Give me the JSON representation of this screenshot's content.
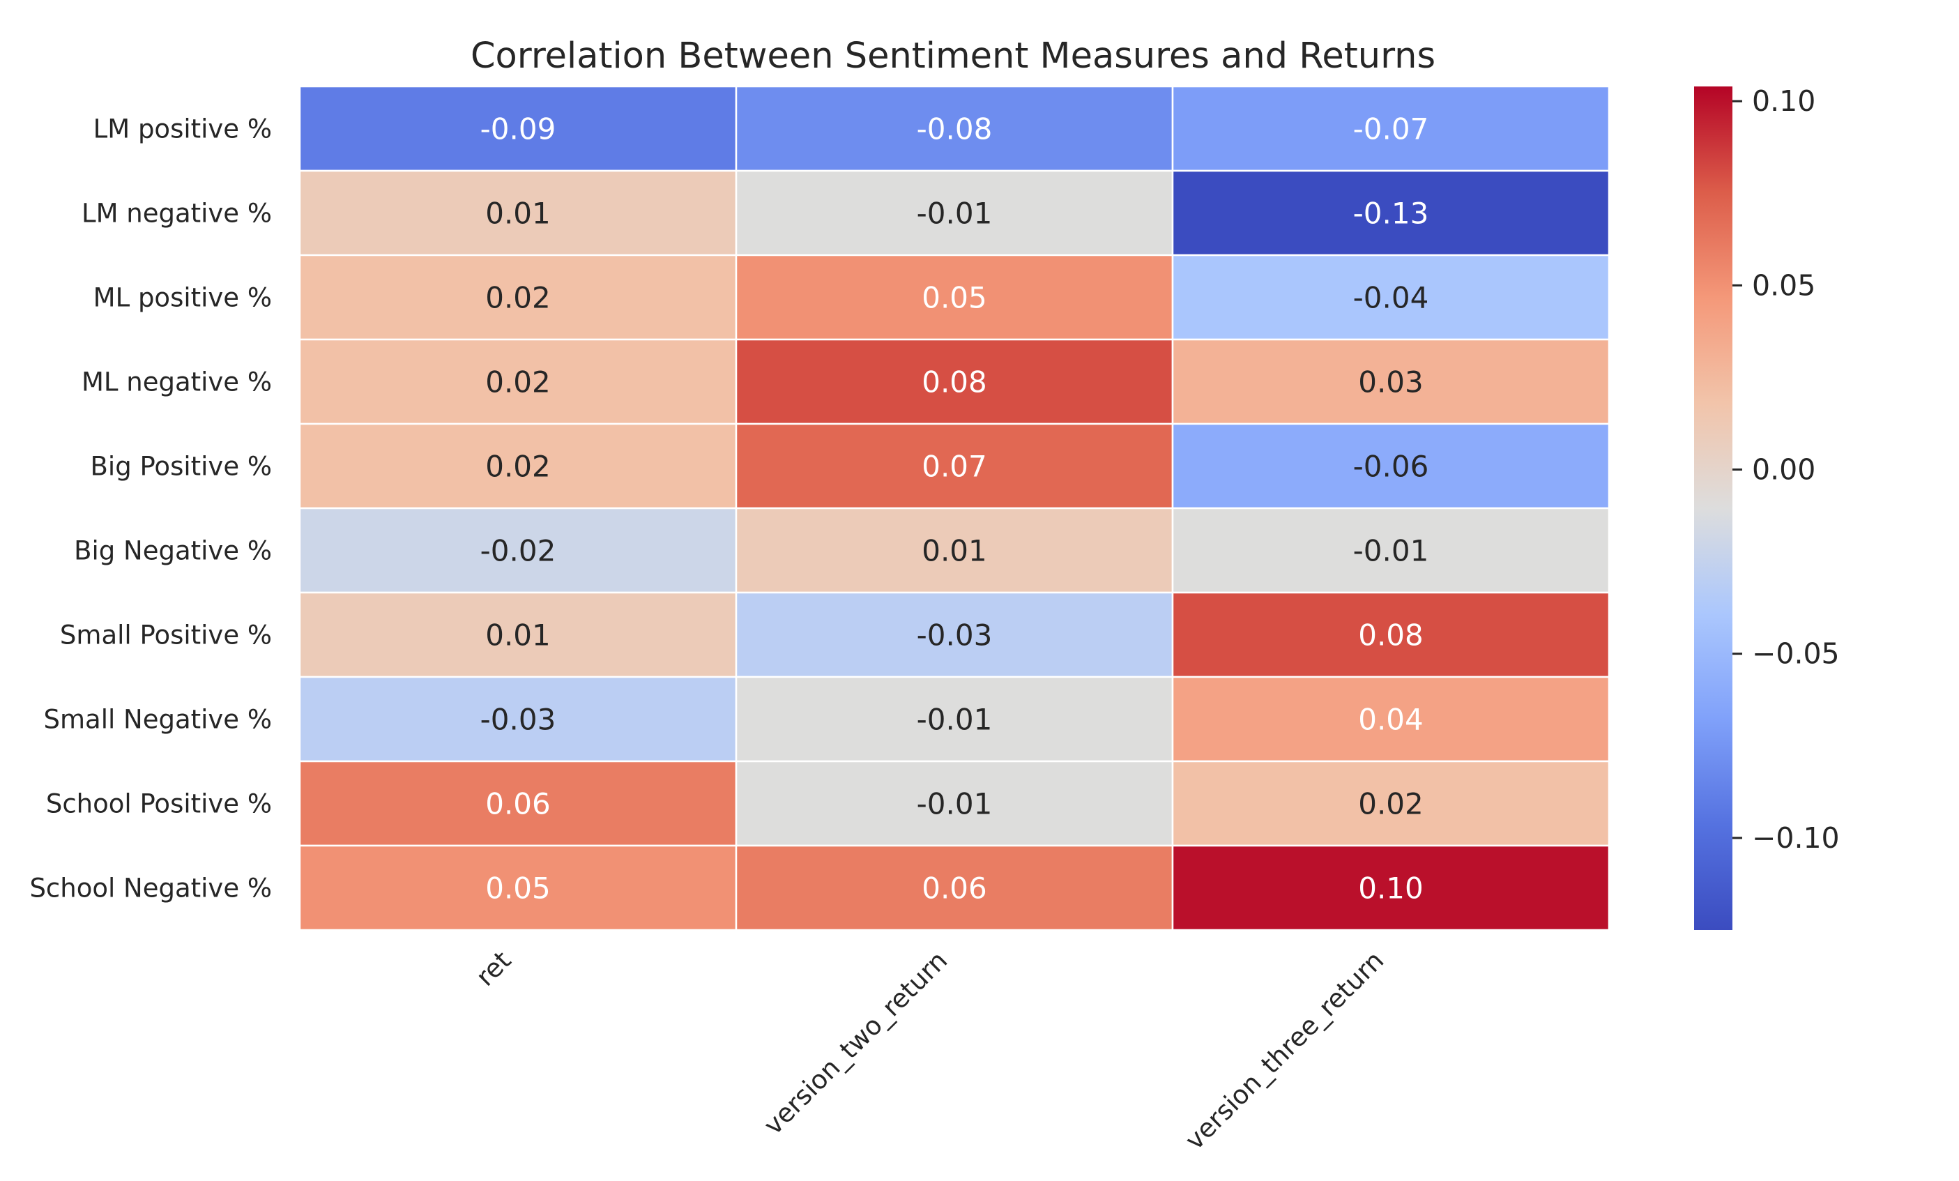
{
  "chart_data": {
    "type": "heatmap",
    "title": "Correlation Between Sentiment Measures and Returns",
    "rows": [
      "LM positive %",
      "LM negative %",
      "ML positive %",
      "ML negative %",
      "Big Positive %",
      "Big Negative %",
      "Small Positive %",
      "Small Negative %",
      "School Positive %",
      "School Negative %"
    ],
    "columns": [
      "ret",
      "version_two_return",
      "version_three_return"
    ],
    "values": [
      [
        -0.09,
        -0.08,
        -0.07
      ],
      [
        0.01,
        -0.01,
        -0.13
      ],
      [
        0.02,
        0.05,
        -0.04
      ],
      [
        0.02,
        0.08,
        0.03
      ],
      [
        0.02,
        0.07,
        -0.06
      ],
      [
        -0.02,
        0.01,
        -0.01
      ],
      [
        0.01,
        -0.03,
        0.08
      ],
      [
        -0.03,
        -0.01,
        0.04
      ],
      [
        0.06,
        -0.01,
        0.02
      ],
      [
        0.05,
        0.06,
        0.1
      ]
    ],
    "display_values": [
      [
        "-0.09",
        "-0.08",
        "-0.07"
      ],
      [
        "0.01",
        "-0.01",
        "-0.13"
      ],
      [
        "0.02",
        "0.05",
        "-0.04"
      ],
      [
        "0.02",
        "0.08",
        "0.03"
      ],
      [
        "0.02",
        "0.07",
        "-0.06"
      ],
      [
        "-0.02",
        "0.01",
        "-0.01"
      ],
      [
        "0.01",
        "-0.03",
        "0.08"
      ],
      [
        "-0.03",
        "-0.01",
        "0.04"
      ],
      [
        "0.06",
        "-0.01",
        "0.02"
      ],
      [
        "0.05",
        "0.06",
        "0.10"
      ]
    ],
    "colormap": "coolwarm",
    "vmin": -0.125,
    "vmax": 0.104,
    "colorbar": {
      "ticks": [
        0.1,
        0.05,
        0.0,
        -0.05,
        -0.1
      ],
      "tick_labels": [
        "0.10",
        "0.05",
        "0.00",
        "−0.05",
        "−0.10"
      ]
    },
    "grid": false,
    "legend": "colorbar-right",
    "cell_border_color": "#ffffff",
    "text_colors": {
      "dark": "#262626",
      "light": "#ffffff"
    }
  }
}
